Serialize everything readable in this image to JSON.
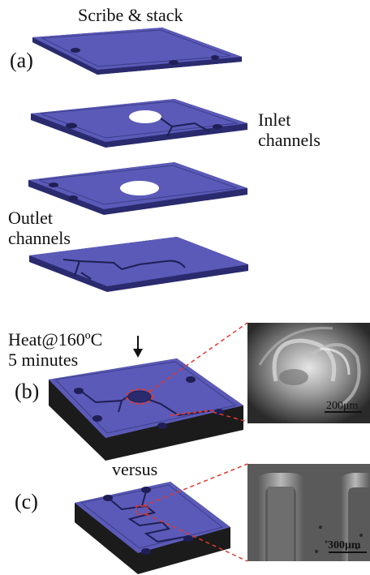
{
  "step_a": {
    "title": "Scribe & stack",
    "label": "(a)",
    "layer_labels": {
      "inlet": [
        "Inlet",
        "channels"
      ],
      "outlet": [
        "Outlet",
        "channels"
      ]
    }
  },
  "step_b": {
    "label": "(b)",
    "condition_lines": [
      "Heat@160ºC",
      "5 minutes"
    ],
    "micrograph_scale": "200μm"
  },
  "step_c": {
    "label": "(c)",
    "comparison": "versus",
    "micrograph_scale": "300μm"
  },
  "colors": {
    "layer_top": "#5b5ab8",
    "layer_side": "#2a2a6e",
    "chip_side": "#1b1b1b",
    "zoom_lines": "#e0392b"
  }
}
